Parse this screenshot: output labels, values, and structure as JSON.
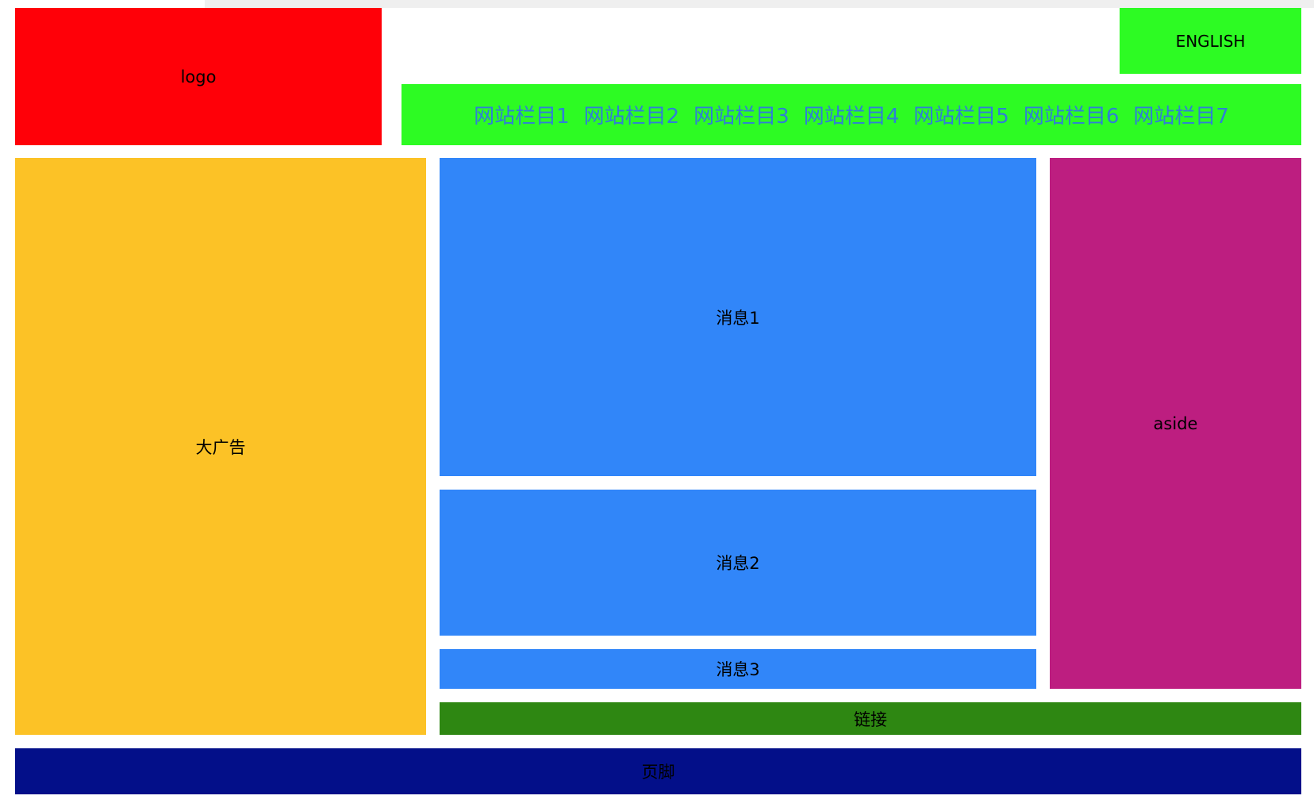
{
  "colors": {
    "logo": "#ff0008",
    "green": "#2dfb23",
    "ad": "#fcc226",
    "message": "#3186f9",
    "aside": "#bd1e80",
    "links": "#2e8712",
    "footer": "#030f89",
    "nav_text": "#2f7fd6",
    "top_strip": "#efefef"
  },
  "header": {
    "logo": "logo",
    "language": "ENGLISH",
    "nav_items": [
      "网站栏目1",
      "网站栏目2",
      "网站栏目3",
      "网站栏目4",
      "网站栏目5",
      "网站栏目6",
      "网站栏目7"
    ]
  },
  "main": {
    "ad": "大广告",
    "messages": [
      "消息1",
      "消息2",
      "消息3"
    ],
    "aside": "aside",
    "links": "链接"
  },
  "footer": {
    "text": "页脚"
  }
}
